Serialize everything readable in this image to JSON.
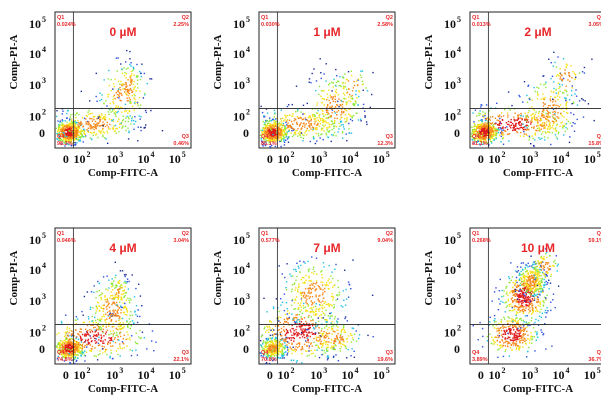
{
  "chart_data": [
    {
      "type": "scatter",
      "panel": "0 µM",
      "xlabel": "Comp-FITC-A",
      "ylabel": "Comp-PI-A",
      "quadrants": {
        "Q1": "0.024%",
        "Q2": "2.25%",
        "Q3": "0.46%",
        "Q4": "98.3%"
      }
    },
    {
      "type": "scatter",
      "panel": "1 μM",
      "xlabel": "Comp-FITC-A",
      "ylabel": "Comp-PI-A",
      "quadrants": {
        "Q1": "0.030%",
        "Q2": "2.58%",
        "Q3": "12.3%",
        "Q4": "85.1%"
      }
    },
    {
      "type": "scatter",
      "panel": "2 μM",
      "xlabel": "Comp-FITC-A",
      "ylabel": "Comp-PI-A",
      "quadrants": {
        "Q1": "0.013%",
        "Q2": "3.05%",
        "Q3": "15.8%",
        "Q4": "81.1%"
      }
    },
    {
      "type": "scatter",
      "panel": "4 μM",
      "xlabel": "Comp-FITC-A",
      "ylabel": "Comp-PI-A",
      "quadrants": {
        "Q1": "0.046%",
        "Q2": "3.04%",
        "Q3": "22.1%",
        "Q4": "74.8%"
      }
    },
    {
      "type": "scatter",
      "panel": "7 μM",
      "xlabel": "Comp-FITC-A",
      "ylabel": "Comp-PI-A",
      "quadrants": {
        "Q1": "0.577%",
        "Q2": "9.04%",
        "Q3": "19.6%",
        "Q4": "70.8%"
      }
    },
    {
      "type": "scatter",
      "panel": "10 μM",
      "xlabel": "Comp-FITC-A",
      "ylabel": "Comp-PI-A",
      "quadrants": {
        "Q1": "0.268%",
        "Q2": "59.1%",
        "Q3": "36.7%",
        "Q4": "3.89%"
      }
    }
  ],
  "axis": {
    "zero": "0",
    "ten_base": "10",
    "ticks": [
      "2",
      "3",
      "4",
      "5"
    ]
  },
  "quadrant_names": [
    "Q1",
    "Q2",
    "Q3",
    "Q4"
  ],
  "colors": {
    "text_red": "#e8272a",
    "density": [
      "#1b2b95",
      "#2f4fe0",
      "#22c3e0",
      "#8fe83a",
      "#f6e21a",
      "#f58a1a",
      "#e01b1b"
    ]
  }
}
